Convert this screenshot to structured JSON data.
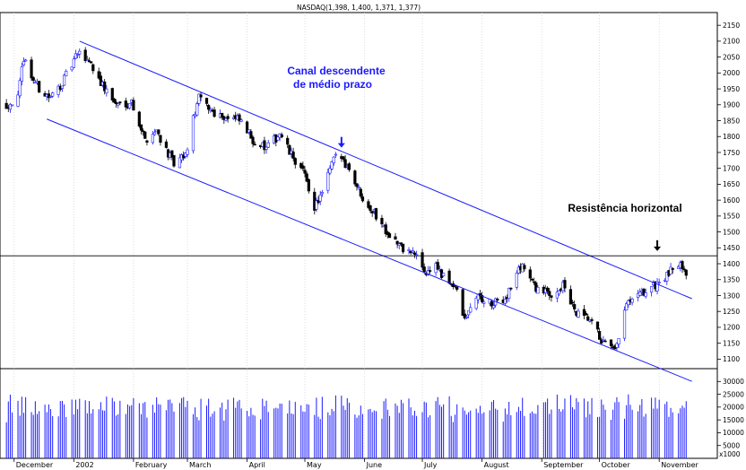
{
  "chart_data": {
    "type": "candlestick",
    "title": "NASDAQ(1,398, 1,400, 1,371, 1,377)",
    "y_axis": {
      "side": "right",
      "range": [
        1070,
        2190
      ],
      "ticks": [
        1100,
        1150,
        1200,
        1250,
        1300,
        1350,
        1400,
        1450,
        1500,
        1550,
        1600,
        1650,
        1700,
        1750,
        1800,
        1850,
        1900,
        1950,
        2000,
        2050,
        2100,
        2150
      ]
    },
    "volume_axis": {
      "range": [
        0,
        35000
      ],
      "ticks": [
        5000,
        10000,
        15000,
        20000,
        25000,
        30000
      ],
      "unit_label": "x1000"
    },
    "x_months": [
      "December",
      "2002",
      "February",
      "March",
      "April",
      "May",
      "June",
      "July",
      "August",
      "September",
      "October",
      "November"
    ],
    "horizontal_resistance": 1425,
    "channel": {
      "upper": [
        {
          "date": "2002-01-04",
          "value": 2100
        },
        {
          "date": "2002-11-18",
          "value": 1290
        }
      ],
      "lower": [
        {
          "date": "2001-12-18",
          "value": 1855
        },
        {
          "date": "2002-11-18",
          "value": 1030
        }
      ]
    },
    "annotations": [
      {
        "text": "Canal descendente",
        "color": "#1a1aff"
      },
      {
        "text": "de médio prazo",
        "color": "#1a1aff"
      },
      {
        "text": "Resistência horizontal",
        "color": "#000000"
      }
    ],
    "arrows": [
      {
        "date": "2002-05-20",
        "value": 1765,
        "color": "#1a1aff"
      },
      {
        "date": "2002-10-31",
        "value": 1440,
        "color": "#000000"
      }
    ],
    "close_anchors": [
      [
        "2001-11-27",
        1900
      ],
      [
        "2001-12-03",
        1920
      ],
      [
        "2001-12-06",
        2050
      ],
      [
        "2001-12-10",
        1990
      ],
      [
        "2001-12-14",
        1950
      ],
      [
        "2001-12-20",
        1920
      ],
      [
        "2001-12-27",
        1980
      ],
      [
        "2002-01-03",
        2060
      ],
      [
        "2002-01-09",
        2040
      ],
      [
        "2002-01-16",
        1960
      ],
      [
        "2002-01-23",
        1900
      ],
      [
        "2002-01-31",
        1910
      ],
      [
        "2002-02-07",
        1790
      ],
      [
        "2002-02-13",
        1820
      ],
      [
        "2002-02-22",
        1710
      ],
      [
        "2002-02-28",
        1740
      ],
      [
        "2002-03-05",
        1880
      ],
      [
        "2002-03-07",
        1920
      ],
      [
        "2002-03-14",
        1880
      ],
      [
        "2002-03-21",
        1860
      ],
      [
        "2002-03-28",
        1850
      ],
      [
        "2002-04-04",
        1790
      ],
      [
        "2002-04-11",
        1760
      ],
      [
        "2002-04-18",
        1810
      ],
      [
        "2002-04-23",
        1750
      ],
      [
        "2002-04-30",
        1690
      ],
      [
        "2002-05-06",
        1580
      ],
      [
        "2002-05-10",
        1620
      ],
      [
        "2002-05-16",
        1730
      ],
      [
        "2002-05-20",
        1735
      ],
      [
        "2002-05-24",
        1700
      ],
      [
        "2002-05-30",
        1620
      ],
      [
        "2002-06-06",
        1560
      ],
      [
        "2002-06-13",
        1500
      ],
      [
        "2002-06-20",
        1450
      ],
      [
        "2002-06-27",
        1430
      ],
      [
        "2002-07-03",
        1370
      ],
      [
        "2002-07-08",
        1400
      ],
      [
        "2002-07-11",
        1360
      ],
      [
        "2002-07-18",
        1330
      ],
      [
        "2002-07-23",
        1220
      ],
      [
        "2002-07-29",
        1300
      ],
      [
        "2002-08-06",
        1270
      ],
      [
        "2002-08-13",
        1290
      ],
      [
        "2002-08-20",
        1380
      ],
      [
        "2002-08-22",
        1400
      ],
      [
        "2002-08-28",
        1330
      ],
      [
        "2002-09-05",
        1300
      ],
      [
        "2002-09-12",
        1330
      ],
      [
        "2002-09-19",
        1240
      ],
      [
        "2002-09-26",
        1220
      ],
      [
        "2002-10-03",
        1150
      ],
      [
        "2002-10-09",
        1120
      ],
      [
        "2002-10-15",
        1270
      ],
      [
        "2002-10-22",
        1300
      ],
      [
        "2002-10-29",
        1330
      ],
      [
        "2002-11-05",
        1360
      ],
      [
        "2002-11-12",
        1410
      ],
      [
        "2002-11-15",
        1377
      ]
    ]
  }
}
